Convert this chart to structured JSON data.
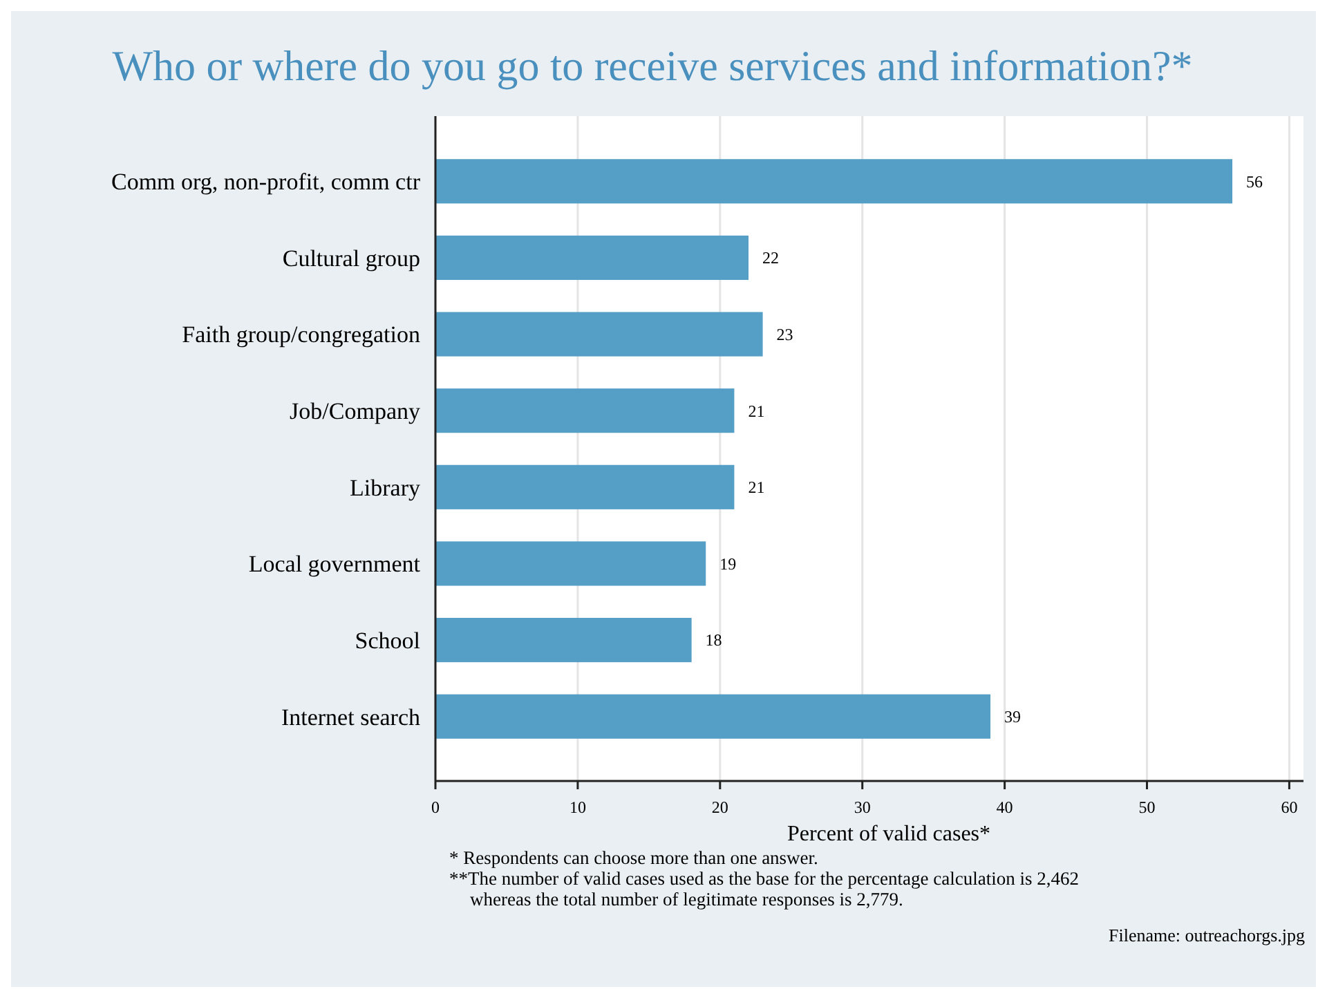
{
  "chart_data": {
    "type": "bar",
    "orientation": "horizontal",
    "title": "Who or where do you go to receive services and information?*",
    "xlabel": "Percent of valid cases*",
    "categories": [
      "Comm org, non-profit, comm ctr",
      "Cultural group",
      "Faith group/congregation",
      "Job/Company",
      "Library",
      "Local government",
      "School",
      "Internet search"
    ],
    "values": [
      56,
      22,
      23,
      21,
      21,
      19,
      18,
      39
    ],
    "color": "#559fc7",
    "data_labels": true,
    "xlim": [
      0,
      61
    ],
    "xticks": [
      0,
      10,
      20,
      30,
      40,
      50,
      60
    ],
    "grid": "x",
    "annotations": [
      "*  Respondents can choose more than one answer.",
      "**The number of valid cases used as the base for the percentage calculation is  2,462 whereas the total number of legitimate responses is 2,779.",
      "Filename: outreachorgs.jpg"
    ]
  }
}
